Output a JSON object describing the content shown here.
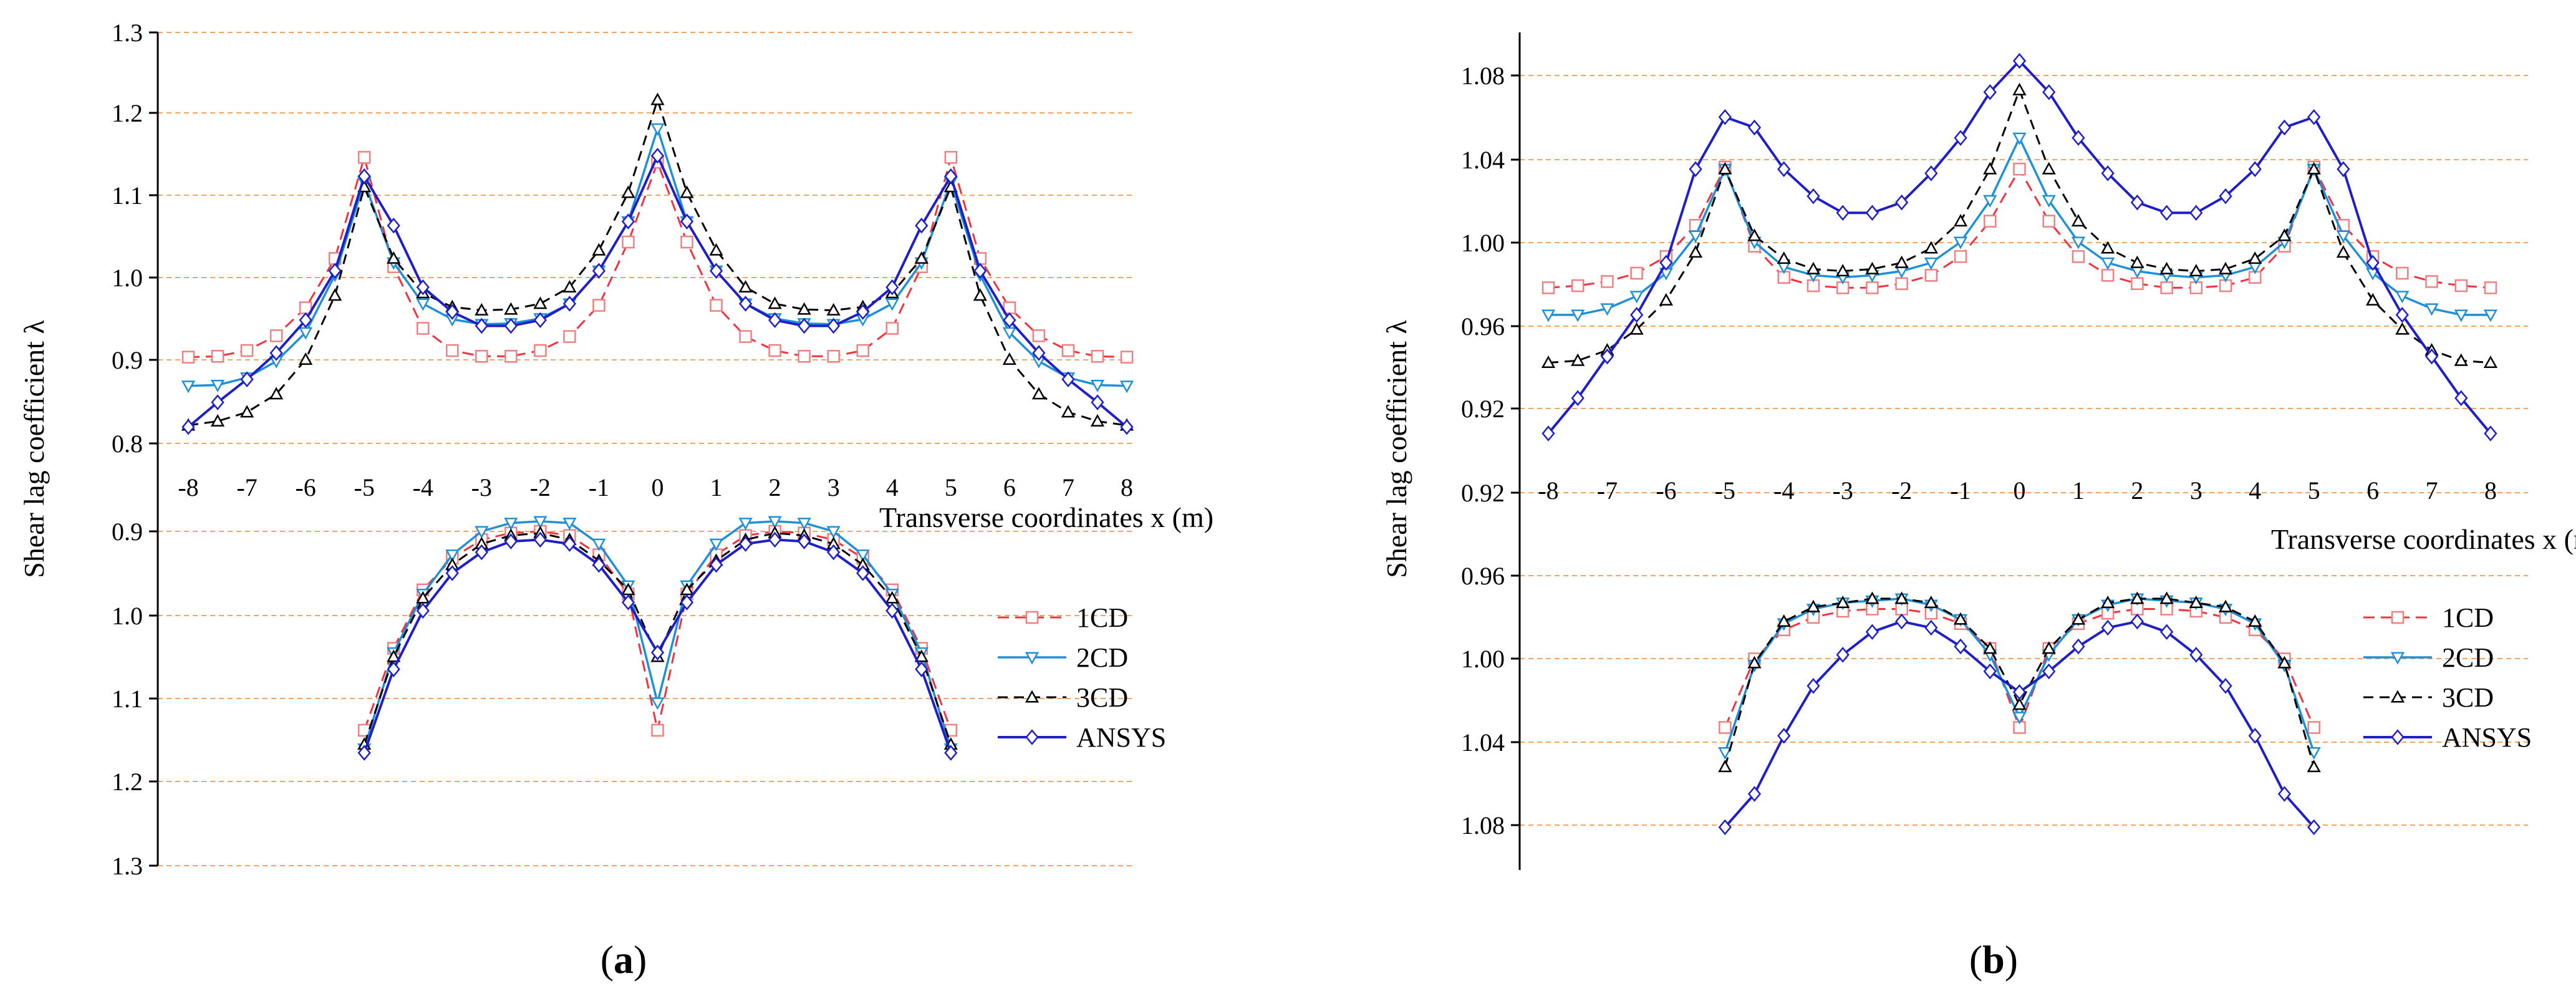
{
  "colors": {
    "s1CD": "#ef3340",
    "s1CD_marker": "#f08080",
    "s2CD": "#1e90d8",
    "s3CD": "#000000",
    "ANSYS": "#1f1fc8",
    "grid": "#f4a361",
    "axis": "#000000"
  },
  "chart_data": [
    {
      "id": "a",
      "type": "line",
      "caption_letter": "a",
      "ylabel": "Shear lag coefficient λ",
      "xlabel": "Transverse coordinates x (m)",
      "x_ticks": [
        "-8",
        "-7",
        "-6",
        "-5",
        "-4",
        "-3",
        "-2",
        "-1",
        "0",
        "1",
        "2",
        "3",
        "4",
        "5",
        "6",
        "7",
        "8"
      ],
      "top_y_ticks": [
        "0.8",
        "0.9",
        "1.0",
        "1.1",
        "1.2",
        "1.3"
      ],
      "bottom_y_ticks": [
        "0.9",
        "1.0",
        "1.1",
        "1.2",
        "1.3"
      ],
      "top_ylim": [
        0.8,
        1.3
      ],
      "bottom_ylim": [
        0.9,
        1.3
      ],
      "legend": [
        "1CD",
        "2CD",
        "3CD",
        "ANSYS"
      ],
      "x": [
        -8,
        -7.5,
        -7,
        -6.5,
        -6,
        -5.5,
        -5,
        -4.5,
        -4,
        -3.5,
        -3,
        -2.5,
        -2,
        -1.5,
        -1,
        -0.5,
        0,
        0.5,
        1,
        1.5,
        2,
        2.5,
        3,
        3.5,
        4,
        4.5,
        5,
        5.5,
        6,
        6.5,
        7,
        7.5,
        8
      ],
      "top_series": [
        {
          "name": "1CD",
          "values": [
            0.905,
            0.906,
            0.913,
            0.931,
            0.965,
            1.025,
            1.148,
            1.015,
            0.94,
            0.913,
            0.906,
            0.906,
            0.913,
            0.93,
            0.968,
            1.045,
            1.142,
            1.045,
            0.968,
            0.93,
            0.913,
            0.906,
            0.906,
            0.913,
            0.94,
            1.015,
            1.148,
            1.025,
            0.965,
            0.931,
            0.913,
            0.906,
            0.905
          ]
        },
        {
          "name": "2CD",
          "values": [
            0.87,
            0.871,
            0.88,
            0.9,
            0.935,
            1.005,
            1.118,
            1.02,
            0.97,
            0.951,
            0.945,
            0.946,
            0.952,
            0.97,
            1.01,
            1.07,
            1.183,
            1.07,
            1.01,
            0.97,
            0.952,
            0.946,
            0.945,
            0.951,
            0.97,
            1.02,
            1.118,
            1.005,
            0.935,
            0.9,
            0.88,
            0.871,
            0.87
          ]
        },
        {
          "name": "3CD",
          "values": [
            0.822,
            0.827,
            0.838,
            0.86,
            0.902,
            0.98,
            1.112,
            1.025,
            0.983,
            0.966,
            0.962,
            0.963,
            0.97,
            0.99,
            1.035,
            1.105,
            1.218,
            1.105,
            1.035,
            0.99,
            0.97,
            0.963,
            0.962,
            0.966,
            0.983,
            1.025,
            1.112,
            0.98,
            0.902,
            0.86,
            0.838,
            0.827,
            0.822
          ]
        },
        {
          "name": "ANSYS",
          "values": [
            0.82,
            0.85,
            0.878,
            0.91,
            0.95,
            1.01,
            1.125,
            1.065,
            0.99,
            0.96,
            0.943,
            0.943,
            0.95,
            0.97,
            1.01,
            1.07,
            1.15,
            1.07,
            1.01,
            0.97,
            0.95,
            0.943,
            0.943,
            0.96,
            0.99,
            1.065,
            1.125,
            1.01,
            0.95,
            0.91,
            0.878,
            0.85,
            0.82
          ]
        }
      ],
      "bottom_x": [
        -5,
        -4.5,
        -4,
        -3.5,
        -3,
        -2.5,
        -2,
        -1.5,
        -1,
        -0.5,
        0,
        0.5,
        1,
        1.5,
        2,
        2.5,
        3,
        3.5,
        4,
        4.5,
        5
      ],
      "bottom_series": [
        {
          "name": "1CD",
          "values": [
            1.138,
            1.04,
            0.97,
            0.932,
            0.91,
            0.902,
            0.9,
            0.905,
            0.928,
            0.975,
            1.138,
            0.975,
            0.928,
            0.905,
            0.9,
            0.902,
            0.91,
            0.932,
            0.97,
            1.04,
            1.138
          ]
        },
        {
          "name": "2CD",
          "values": [
            1.16,
            1.045,
            0.975,
            0.928,
            0.9,
            0.89,
            0.888,
            0.89,
            0.915,
            0.965,
            1.105,
            0.965,
            0.915,
            0.89,
            0.888,
            0.89,
            0.9,
            0.928,
            0.975,
            1.045,
            1.16
          ]
        },
        {
          "name": "3CD",
          "values": [
            1.155,
            1.05,
            0.98,
            0.94,
            0.915,
            0.905,
            0.902,
            0.91,
            0.935,
            0.97,
            1.05,
            0.97,
            0.935,
            0.91,
            0.902,
            0.905,
            0.915,
            0.94,
            0.98,
            1.05,
            1.155
          ]
        },
        {
          "name": "ANSYS",
          "values": [
            1.165,
            1.065,
            0.995,
            0.95,
            0.925,
            0.912,
            0.91,
            0.915,
            0.94,
            0.985,
            1.045,
            0.985,
            0.94,
            0.915,
            0.91,
            0.912,
            0.925,
            0.95,
            0.995,
            1.065,
            1.165
          ]
        }
      ]
    },
    {
      "id": "b",
      "type": "line",
      "caption_letter": "b",
      "ylabel": "Shear lag coefficient λ",
      "xlabel": "Transverse coordinates x (m)",
      "x_ticks": [
        "-8",
        "-7",
        "-6",
        "-5",
        "-4",
        "-3",
        "-2",
        "-1",
        "0",
        "1",
        "2",
        "3",
        "4",
        "5",
        "6",
        "7",
        "8"
      ],
      "top_y_ticks": [
        "0.92",
        "0.96",
        "1.00",
        "1.04",
        "1.08"
      ],
      "bottom_y_ticks": [
        "0.92",
        "0.96",
        "1.00",
        "1.04",
        "1.08"
      ],
      "top_ylim": [
        0.9,
        1.1
      ],
      "bottom_ylim": [
        0.92,
        1.1
      ],
      "legend": [
        "1CD",
        "2CD",
        "3CD",
        "ANSYS"
      ],
      "x": [
        -8,
        -7.5,
        -7,
        -6.5,
        -6,
        -5.5,
        -5,
        -4.5,
        -4,
        -3.5,
        -3,
        -2.5,
        -2,
        -1.5,
        -1,
        -0.5,
        0,
        0.5,
        1,
        1.5,
        2,
        2.5,
        3,
        3.5,
        4,
        4.5,
        5,
        5.5,
        6,
        6.5,
        7,
        7.5,
        8
      ],
      "top_series": [
        {
          "name": "1CD",
          "values": [
            0.978,
            0.979,
            0.981,
            0.985,
            0.993,
            1.008,
            1.036,
            0.998,
            0.983,
            0.979,
            0.978,
            0.978,
            0.98,
            0.984,
            0.993,
            1.01,
            1.035,
            1.01,
            0.993,
            0.984,
            0.98,
            0.978,
            0.978,
            0.979,
            0.983,
            0.998,
            1.036,
            1.008,
            0.993,
            0.985,
            0.981,
            0.979,
            0.978
          ]
        },
        {
          "name": "2CD",
          "values": [
            0.965,
            0.965,
            0.968,
            0.974,
            0.985,
            1.003,
            1.035,
            1.0,
            0.988,
            0.984,
            0.983,
            0.984,
            0.986,
            0.99,
            1.0,
            1.02,
            1.05,
            1.02,
            1.0,
            0.99,
            0.986,
            0.984,
            0.983,
            0.984,
            0.988,
            1.0,
            1.035,
            1.003,
            0.985,
            0.974,
            0.968,
            0.965,
            0.965
          ]
        },
        {
          "name": "3CD",
          "values": [
            0.942,
            0.943,
            0.948,
            0.958,
            0.972,
            0.995,
            1.035,
            1.003,
            0.992,
            0.987,
            0.986,
            0.987,
            0.99,
            0.997,
            1.01,
            1.035,
            1.073,
            1.035,
            1.01,
            0.997,
            0.99,
            0.987,
            0.986,
            0.987,
            0.992,
            1.003,
            1.035,
            0.995,
            0.972,
            0.958,
            0.948,
            0.943,
            0.942
          ]
        },
        {
          "name": "ANSYS",
          "values": [
            0.908,
            0.925,
            0.945,
            0.965,
            0.99,
            1.035,
            1.06,
            1.055,
            1.035,
            1.022,
            1.014,
            1.014,
            1.019,
            1.033,
            1.05,
            1.072,
            1.087,
            1.072,
            1.05,
            1.033,
            1.019,
            1.014,
            1.014,
            1.022,
            1.035,
            1.055,
            1.06,
            1.035,
            0.99,
            0.965,
            0.945,
            0.925,
            0.908
          ]
        }
      ],
      "bottom_x": [
        -5,
        -4.5,
        -4,
        -3.5,
        -3,
        -2.5,
        -2,
        -1.5,
        -1,
        -0.5,
        0,
        0.5,
        1,
        1.5,
        2,
        2.5,
        3,
        3.5,
        4,
        4.5,
        5
      ],
      "bottom_series": [
        {
          "name": "1CD",
          "values": [
            1.033,
            1.0,
            0.986,
            0.98,
            0.977,
            0.976,
            0.976,
            0.978,
            0.983,
            0.995,
            1.033,
            0.995,
            0.983,
            0.978,
            0.976,
            0.976,
            0.977,
            0.98,
            0.986,
            1.0,
            1.033
          ]
        },
        {
          "name": "2CD",
          "values": [
            1.045,
            1.003,
            0.983,
            0.976,
            0.973,
            0.972,
            0.971,
            0.974,
            0.981,
            0.998,
            1.028,
            0.998,
            0.981,
            0.974,
            0.971,
            0.972,
            0.973,
            0.976,
            0.983,
            1.003,
            1.045
          ]
        },
        {
          "name": "3CD",
          "values": [
            1.052,
            1.002,
            0.982,
            0.975,
            0.973,
            0.971,
            0.971,
            0.973,
            0.981,
            0.995,
            1.022,
            0.995,
            0.981,
            0.973,
            0.971,
            0.971,
            0.973,
            0.975,
            0.982,
            1.002,
            1.052
          ]
        },
        {
          "name": "ANSYS",
          "values": [
            1.081,
            1.065,
            1.037,
            1.013,
            0.998,
            0.987,
            0.982,
            0.985,
            0.994,
            1.006,
            1.016,
            1.006,
            0.994,
            0.985,
            0.982,
            0.987,
            0.998,
            1.013,
            1.037,
            1.065,
            1.081
          ]
        }
      ]
    }
  ]
}
